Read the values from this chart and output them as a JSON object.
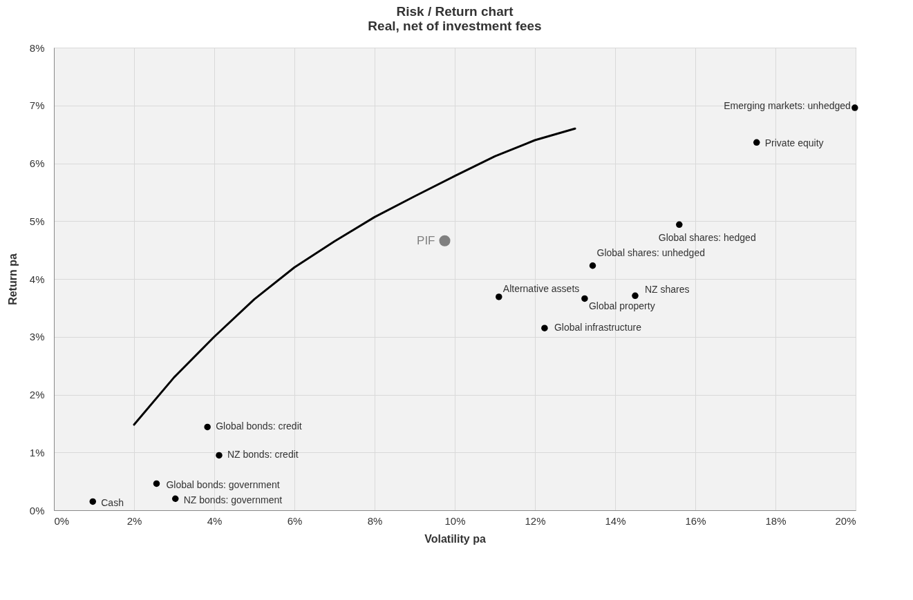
{
  "chart_data": {
    "type": "scatter",
    "title": "Risk / Return chart",
    "subtitle": "Real, net of investment fees",
    "xlabel": "Volatility pa",
    "ylabel": "Return pa",
    "xlim": [
      0,
      20
    ],
    "xticks": [
      {
        "value": 0,
        "label": "0%"
      },
      {
        "value": 2,
        "label": "2%"
      },
      {
        "value": 4,
        "label": "4%"
      },
      {
        "value": 6,
        "label": "6%"
      },
      {
        "value": 8,
        "label": "8%"
      },
      {
        "value": 10,
        "label": "10%"
      },
      {
        "value": 12,
        "label": "12%"
      },
      {
        "value": 14,
        "label": "14%"
      },
      {
        "value": 16,
        "label": "16%"
      },
      {
        "value": 18,
        "label": "18%"
      },
      {
        "value": 20,
        "label": "20%"
      }
    ],
    "ylim": [
      0,
      8
    ],
    "yticks": [
      {
        "value": 0,
        "label": "0%"
      },
      {
        "value": 1,
        "label": "1%"
      },
      {
        "value": 2,
        "label": "2%"
      },
      {
        "value": 3,
        "label": "3%"
      },
      {
        "value": 4,
        "label": "4%"
      },
      {
        "value": 5,
        "label": "5%"
      },
      {
        "value": 6,
        "label": "6%"
      },
      {
        "value": 7,
        "label": "7%"
      },
      {
        "value": 8,
        "label": "8%"
      }
    ],
    "grid": true,
    "marker": "circle",
    "series": [
      {
        "type": "line",
        "marker": "none",
        "color": "#000000",
        "x": [
          2,
          3,
          4,
          5,
          6,
          7,
          8,
          9,
          10,
          11,
          12,
          13
        ],
        "values": [
          1.48,
          2.3,
          3.0,
          3.65,
          4.2,
          4.65,
          5.07,
          5.43,
          5.78,
          6.12,
          6.4,
          6.6
        ]
      },
      {
        "name": "Cash",
        "color": "#000000",
        "x": [
          0.97
        ],
        "values": [
          0.15
        ]
      },
      {
        "name": "Global bonds: government",
        "color": "#000000",
        "x": [
          2.56
        ],
        "values": [
          0.46
        ]
      },
      {
        "name": "NZ bonds: government",
        "color": "#000000",
        "x": [
          3.03
        ],
        "values": [
          0.2
        ]
      },
      {
        "name": "Global bonds: credit",
        "color": "#000000",
        "x": [
          3.83
        ],
        "values": [
          1.44
        ]
      },
      {
        "name": "NZ bonds: credit",
        "color": "#000000",
        "x": [
          4.12
        ],
        "values": [
          0.95
        ]
      },
      {
        "name": "Alternative assets",
        "color": "#000000",
        "x": [
          11.1
        ],
        "values": [
          3.69
        ]
      },
      {
        "name": "Global infrastructure",
        "color": "#000000",
        "x": [
          12.24
        ],
        "values": [
          3.15
        ]
      },
      {
        "name": "Global property",
        "color": "#000000",
        "x": [
          13.24
        ],
        "values": [
          3.66
        ]
      },
      {
        "name": "Global shares: unhedged",
        "color": "#000000",
        "x": [
          13.44
        ],
        "values": [
          4.23
        ]
      },
      {
        "name": "NZ shares",
        "color": "#000000",
        "x": [
          14.5
        ],
        "values": [
          3.71
        ]
      },
      {
        "name": "Global shares: hedged",
        "color": "#000000",
        "x": [
          15.6
        ],
        "values": [
          4.94
        ]
      },
      {
        "name": "Private equity",
        "color": "#000000",
        "x": [
          17.53
        ],
        "values": [
          6.36
        ]
      },
      {
        "name": "Emerging markets: unhedged",
        "color": "#000000",
        "x": [
          19.98
        ],
        "values": [
          6.96
        ]
      },
      {
        "name": "PIF",
        "color": "#808080",
        "x": [
          9.75
        ],
        "values": [
          4.66
        ]
      }
    ]
  }
}
